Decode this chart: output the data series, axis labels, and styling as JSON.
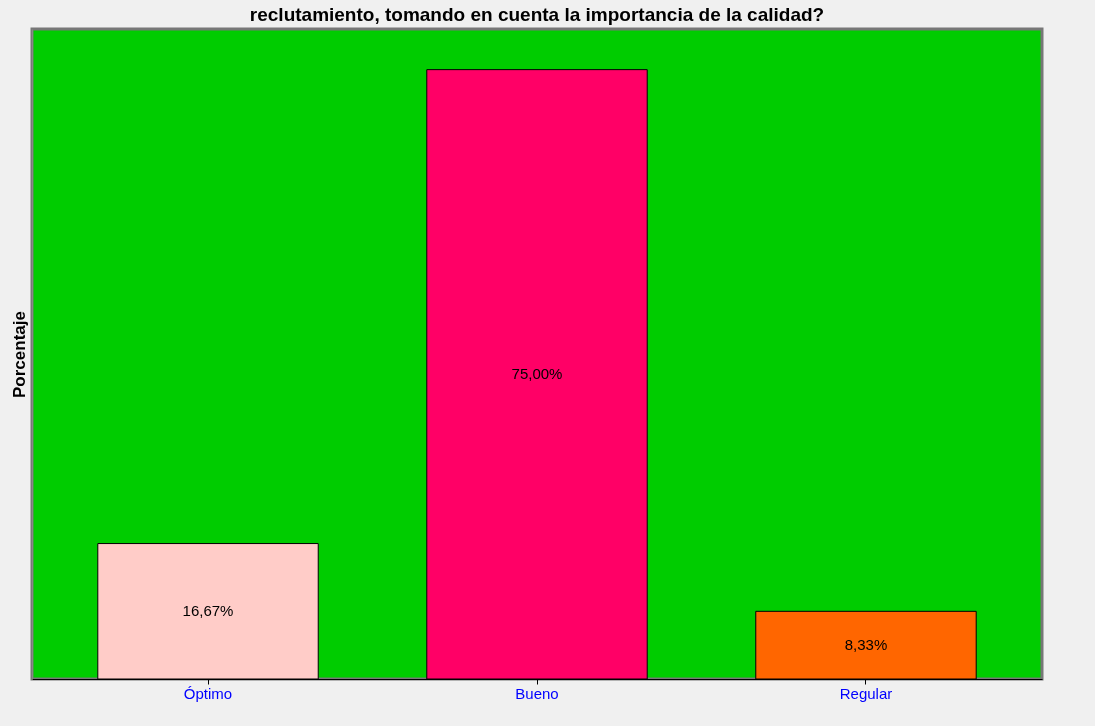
{
  "chart_data": {
    "type": "bar",
    "title": "reclutamiento, tomando en cuenta la importancia de la calidad?",
    "ylabel": "Porcentaje",
    "categories": [
      "Óptimo",
      "Bueno",
      "Regular"
    ],
    "values": [
      16.67,
      75.0,
      8.33
    ],
    "colors": [
      "#ffccc8",
      "#ff0066",
      "#ff6600"
    ],
    "value_labels": [
      "16,67%",
      "75,00%",
      "8,33%"
    ],
    "grid": false
  }
}
